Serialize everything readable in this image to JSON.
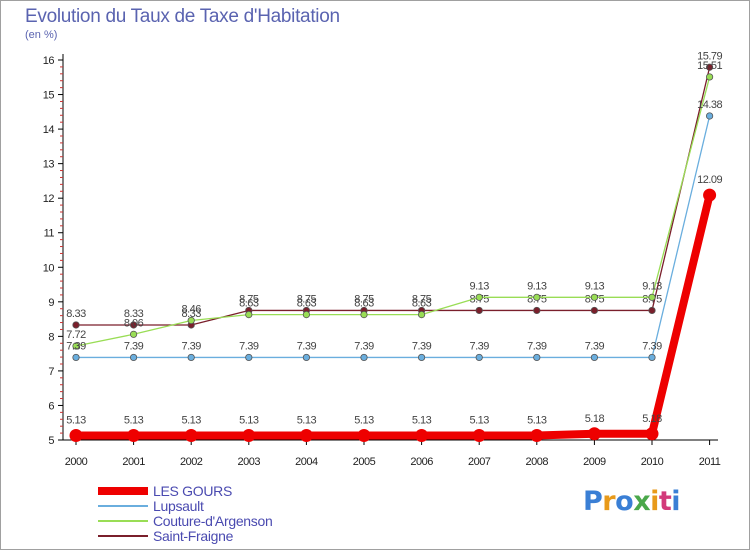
{
  "chart_data": {
    "type": "line",
    "title": "Evolution du Taux de Taxe d'Habitation",
    "ylabel": "(en %)",
    "xlabel": "",
    "x": [
      "2000",
      "2001",
      "2002",
      "2003",
      "2004",
      "2005",
      "2006",
      "2007",
      "2008",
      "2009",
      "2010",
      "2011"
    ],
    "ylim": [
      5,
      16
    ],
    "yticks": [
      "5",
      "6",
      "7",
      "8",
      "9",
      "10",
      "11",
      "12",
      "13",
      "14",
      "15",
      "16"
    ],
    "grid": false,
    "legend_position": "bottom-left",
    "series": [
      {
        "name": "Saint-Fraigne",
        "color": "#7a1f2b",
        "values": [
          8.33,
          8.33,
          8.33,
          8.75,
          8.75,
          8.75,
          8.75,
          8.75,
          8.75,
          8.75,
          8.75,
          15.79
        ],
        "labels": [
          "8.33",
          "8.33",
          "8.33",
          "8.75",
          "8.75",
          "8.75",
          "8.75",
          "8.75",
          "8.75",
          "8.75",
          "8.75",
          "15.79"
        ]
      },
      {
        "name": "Couture-d'Argenson",
        "color": "#99dd55",
        "values": [
          7.72,
          8.06,
          8.46,
          8.63,
          8.63,
          8.63,
          8.63,
          9.13,
          9.13,
          9.13,
          9.13,
          15.51
        ],
        "labels": [
          "7.72",
          "8.06",
          "8.46",
          "8.63",
          "8.63",
          "8.63",
          "8.63",
          "9.13",
          "9.13",
          "9.13",
          "9.13",
          "15.51"
        ]
      },
      {
        "name": "Lupsault",
        "color": "#6aaede",
        "values": [
          7.39,
          7.39,
          7.39,
          7.39,
          7.39,
          7.39,
          7.39,
          7.39,
          7.39,
          7.39,
          7.39,
          14.38
        ],
        "labels": [
          "7.39",
          "7.39",
          "7.39",
          "7.39",
          "7.39",
          "7.39",
          "7.39",
          "7.39",
          "7.39",
          "7.39",
          "7.39",
          "14.38"
        ]
      },
      {
        "name": "LES GOURS",
        "color": "#ee0000",
        "values": [
          5.13,
          5.13,
          5.13,
          5.13,
          5.13,
          5.13,
          5.13,
          5.13,
          5.13,
          5.18,
          5.18,
          12.09
        ],
        "labels": [
          "5.13",
          "5.13",
          "5.13",
          "5.13",
          "5.13",
          "5.13",
          "5.13",
          "5.13",
          "5.13",
          "5.18",
          "5.18",
          "12.09"
        ]
      }
    ],
    "legend": [
      "LES GOURS",
      "Lupsault",
      "Couture-d'Argenson",
      "Saint-Fraigne"
    ],
    "legend_colors": [
      "#ee0000",
      "#6aaede",
      "#99dd55",
      "#7a1f2b"
    ]
  },
  "branding": {
    "logo_text": "Proxiti",
    "logo_colors": [
      "#3a7fd5",
      "#e89a1a",
      "#3a7fd5",
      "#4aa84a",
      "#e89a1a",
      "#d23a7a",
      "#3a7fd5"
    ]
  }
}
